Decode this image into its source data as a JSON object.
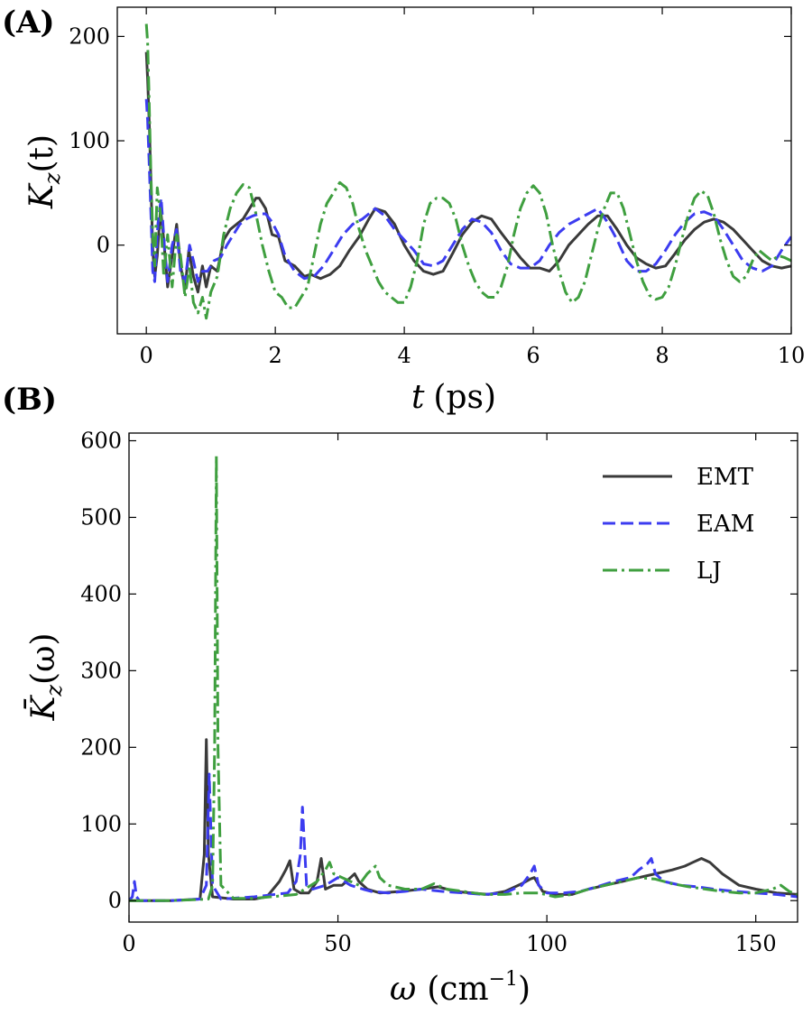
{
  "chart_data": [
    {
      "panel_label": "(A)",
      "type": "line",
      "title": "",
      "xlabel_main": "t",
      "xlabel_unit": "(ps)",
      "ylabel_main": "K",
      "ylabel_sub": "z",
      "ylabel_arg": "(t)",
      "xlim": [
        -0.45,
        10
      ],
      "ylim": [
        -85,
        228
      ],
      "xticks": [
        0,
        2,
        4,
        6,
        8,
        10
      ],
      "yticks": [
        0,
        100,
        200
      ],
      "grid": false,
      "series": [
        {
          "name": "EMT",
          "color": "#3a3a3a",
          "style": "solid",
          "x": [
            0,
            0.02,
            0.05,
            0.08,
            0.1,
            0.13,
            0.17,
            0.22,
            0.27,
            0.33,
            0.4,
            0.47,
            0.53,
            0.6,
            0.66,
            0.73,
            0.8,
            0.87,
            0.93,
            1.0,
            1.1,
            1.2,
            1.3,
            1.4,
            1.5,
            1.6,
            1.7,
            1.75,
            1.85,
            1.95,
            2.05,
            2.15,
            2.3,
            2.45,
            2.55,
            2.7,
            2.85,
            3.0,
            3.15,
            3.3,
            3.45,
            3.55,
            3.7,
            3.85,
            4.0,
            4.15,
            4.3,
            4.45,
            4.6,
            4.75,
            4.9,
            5.05,
            5.2,
            5.35,
            5.5,
            5.65,
            5.8,
            5.95,
            6.1,
            6.25,
            6.4,
            6.55,
            6.7,
            6.85,
            7.0,
            7.15,
            7.3,
            7.45,
            7.6,
            7.75,
            7.9,
            8.05,
            8.2,
            8.35,
            8.5,
            8.65,
            8.8,
            8.95,
            9.1,
            9.25,
            9.4,
            9.55,
            9.7,
            9.85,
            10.0
          ],
          "y": [
            185,
            160,
            110,
            40,
            -5,
            -30,
            -10,
            35,
            5,
            -40,
            -10,
            20,
            -20,
            -42,
            -5,
            -30,
            -45,
            -20,
            -40,
            -20,
            -25,
            5,
            15,
            20,
            25,
            35,
            45,
            45,
            35,
            10,
            8,
            -15,
            -20,
            -30,
            -28,
            -32,
            -28,
            -20,
            -5,
            8,
            25,
            35,
            32,
            20,
            0,
            -15,
            -25,
            -28,
            -25,
            -8,
            10,
            22,
            28,
            25,
            12,
            0,
            -12,
            -22,
            -22,
            -25,
            -15,
            0,
            10,
            20,
            28,
            28,
            15,
            0,
            -12,
            -18,
            -22,
            -20,
            -8,
            5,
            15,
            22,
            25,
            22,
            15,
            5,
            -5,
            -15,
            -20,
            -22,
            -20
          ]
        },
        {
          "name": "EAM",
          "color": "#3c3cf0",
          "style": "dashed",
          "x": [
            0,
            0.02,
            0.05,
            0.08,
            0.1,
            0.13,
            0.18,
            0.23,
            0.28,
            0.33,
            0.4,
            0.47,
            0.53,
            0.6,
            0.67,
            0.73,
            0.8,
            0.87,
            0.95,
            1.05,
            1.15,
            1.25,
            1.35,
            1.45,
            1.55,
            1.65,
            1.75,
            1.85,
            1.95,
            2.05,
            2.15,
            2.3,
            2.45,
            2.6,
            2.75,
            2.9,
            3.05,
            3.2,
            3.35,
            3.45,
            3.55,
            3.7,
            3.85,
            4.0,
            4.15,
            4.3,
            4.45,
            4.6,
            4.75,
            4.9,
            5.05,
            5.2,
            5.35,
            5.5,
            5.65,
            5.8,
            5.95,
            6.1,
            6.25,
            6.4,
            6.55,
            6.7,
            6.85,
            7.0,
            7.15,
            7.3,
            7.45,
            7.6,
            7.75,
            7.9,
            8.05,
            8.2,
            8.35,
            8.5,
            8.65,
            8.8,
            8.95,
            9.1,
            9.25,
            9.4,
            9.55,
            9.7,
            9.85,
            10.0
          ],
          "y": [
            140,
            120,
            70,
            15,
            -25,
            -35,
            20,
            45,
            0,
            -35,
            0,
            15,
            -25,
            -35,
            0,
            -15,
            -35,
            -25,
            -25,
            -15,
            -12,
            0,
            10,
            20,
            25,
            28,
            30,
            30,
            22,
            10,
            -10,
            -25,
            -32,
            -30,
            -20,
            -5,
            10,
            20,
            25,
            30,
            35,
            28,
            15,
            5,
            -5,
            -18,
            -20,
            -15,
            0,
            15,
            25,
            22,
            12,
            -5,
            -18,
            -22,
            -22,
            -15,
            0,
            12,
            20,
            25,
            30,
            35,
            22,
            5,
            -15,
            -25,
            -25,
            -18,
            -5,
            10,
            22,
            30,
            32,
            28,
            15,
            0,
            -15,
            -22,
            -25,
            -20,
            -5,
            8
          ]
        },
        {
          "name": "LJ",
          "color": "#3f9f3f",
          "style": "dashdot",
          "x": [
            0,
            0.02,
            0.04,
            0.07,
            0.1,
            0.13,
            0.17,
            0.22,
            0.27,
            0.33,
            0.4,
            0.47,
            0.53,
            0.6,
            0.67,
            0.73,
            0.8,
            0.87,
            0.93,
            1.0,
            1.1,
            1.2,
            1.3,
            1.4,
            1.5,
            1.6,
            1.7,
            1.8,
            1.9,
            2.0,
            2.1,
            2.2,
            2.3,
            2.4,
            2.5,
            2.6,
            2.7,
            2.8,
            2.9,
            3.0,
            3.1,
            3.2,
            3.3,
            3.4,
            3.5,
            3.6,
            3.7,
            3.8,
            3.9,
            4.0,
            4.1,
            4.2,
            4.3,
            4.4,
            4.5,
            4.6,
            4.7,
            4.8,
            4.9,
            5.0,
            5.1,
            5.2,
            5.3,
            5.4,
            5.5,
            5.6,
            5.7,
            5.8,
            5.9,
            6.0,
            6.1,
            6.2,
            6.3,
            6.4,
            6.5,
            6.6,
            6.7,
            6.8,
            6.9,
            7.0,
            7.1,
            7.2,
            7.3,
            7.4,
            7.5,
            7.6,
            7.7,
            7.8,
            7.9,
            8.0,
            8.1,
            8.2,
            8.3,
            8.4,
            8.5,
            8.6,
            8.7,
            8.8,
            8.9,
            9.0,
            9.1,
            9.2,
            9.3,
            9.4,
            9.5,
            9.6,
            9.7,
            9.8,
            9.9,
            10.0
          ],
          "y": [
            212,
            195,
            150,
            70,
            10,
            -20,
            55,
            30,
            -30,
            10,
            -40,
            10,
            -10,
            -50,
            -20,
            -55,
            -65,
            -50,
            -70,
            -45,
            -30,
            10,
            35,
            50,
            58,
            55,
            30,
            0,
            -25,
            -45,
            -50,
            -60,
            -60,
            -50,
            -40,
            -10,
            20,
            40,
            50,
            60,
            55,
            40,
            15,
            -5,
            -20,
            -35,
            -45,
            -50,
            -55,
            -55,
            -40,
            -15,
            20,
            40,
            45,
            45,
            40,
            25,
            0,
            -20,
            -35,
            -45,
            -50,
            -50,
            -40,
            -20,
            10,
            35,
            50,
            57,
            50,
            30,
            0,
            -25,
            -45,
            -55,
            -50,
            -35,
            -10,
            15,
            35,
            50,
            50,
            35,
            10,
            -15,
            -35,
            -48,
            -52,
            -50,
            -40,
            -20,
            5,
            28,
            45,
            52,
            48,
            30,
            5,
            -15,
            -30,
            -35,
            -30,
            -15,
            -5,
            -10,
            -15,
            -10,
            -12,
            -15
          ]
        }
      ]
    },
    {
      "panel_label": "(B)",
      "type": "line",
      "title": "",
      "xlabel_main": "ω",
      "xlabel_unit_open": "(cm",
      "xlabel_unit_sup": "−1",
      "xlabel_unit_close": ")",
      "ylabel_main": "K̄",
      "ylabel_sub": "z",
      "ylabel_arg": "(ω)",
      "xlim": [
        0,
        160
      ],
      "ylim": [
        -28,
        610
      ],
      "xticks": [
        0,
        50,
        100,
        150
      ],
      "yticks": [
        0,
        100,
        200,
        300,
        400,
        500,
        600
      ],
      "grid": false,
      "legend_position": "top-right",
      "series": [
        {
          "name": "EMT",
          "color": "#3a3a3a",
          "style": "solid",
          "x": [
            0,
            10,
            17,
            18,
            18.5,
            19,
            20,
            25,
            30,
            33,
            36,
            37.5,
            38.5,
            39.5,
            41,
            43,
            45,
            46,
            47,
            49,
            51,
            53,
            54,
            55,
            57,
            60,
            65,
            70,
            74,
            78,
            82,
            86,
            90,
            94,
            96,
            97,
            99,
            102,
            106,
            110,
            114,
            118,
            122,
            126,
            130,
            133,
            135,
            137,
            139,
            142,
            146,
            150,
            155,
            160
          ],
          "y": [
            0,
            0,
            2,
            60,
            210,
            60,
            5,
            2,
            2,
            5,
            25,
            40,
            52,
            15,
            10,
            10,
            25,
            55,
            15,
            20,
            20,
            30,
            35,
            25,
            15,
            10,
            12,
            15,
            18,
            12,
            10,
            8,
            12,
            22,
            28,
            30,
            12,
            8,
            8,
            15,
            20,
            25,
            30,
            35,
            40,
            45,
            50,
            55,
            50,
            35,
            20,
            15,
            10,
            8
          ]
        },
        {
          "name": "EAM",
          "color": "#3c3cf0",
          "style": "dashed",
          "x": [
            0,
            0.8,
            1.3,
            1.8,
            2.5,
            10,
            17,
            18.5,
            19.2,
            20,
            22,
            30,
            38,
            40,
            41,
            41.5,
            42.5,
            44,
            47,
            50,
            53,
            56,
            58,
            62,
            66,
            70,
            75,
            80,
            85,
            90,
            94,
            96,
            97,
            98,
            100,
            104,
            108,
            112,
            116,
            120,
            122,
            124,
            125,
            126,
            128,
            132,
            136,
            140,
            145,
            150,
            155,
            160
          ],
          "y": [
            0,
            5,
            25,
            5,
            0,
            0,
            2,
            20,
            165,
            20,
            2,
            5,
            10,
            25,
            60,
            122,
            20,
            15,
            20,
            30,
            20,
            15,
            12,
            10,
            12,
            15,
            12,
            10,
            8,
            10,
            20,
            35,
            45,
            20,
            10,
            10,
            12,
            18,
            25,
            30,
            40,
            48,
            55,
            35,
            25,
            20,
            18,
            15,
            12,
            10,
            8,
            5
          ]
        },
        {
          "name": "LJ",
          "color": "#3f9f3f",
          "style": "dashdot",
          "x": [
            0,
            10,
            19,
            20,
            20.5,
            20.9,
            21.3,
            22,
            25,
            30,
            40,
            45,
            47,
            48,
            49,
            51,
            53,
            55,
            57,
            59,
            60,
            62,
            66,
            70,
            73,
            76,
            80,
            85,
            90,
            94,
            98,
            102,
            106,
            110,
            114,
            118,
            122,
            126,
            130,
            134,
            138,
            142,
            146,
            150,
            154,
            156,
            158,
            160
          ],
          "y": [
            0,
            0,
            2,
            20,
            200,
            580,
            200,
            20,
            3,
            3,
            8,
            25,
            40,
            50,
            35,
            30,
            25,
            20,
            35,
            45,
            30,
            20,
            15,
            15,
            22,
            15,
            12,
            8,
            8,
            10,
            10,
            5,
            8,
            15,
            20,
            25,
            30,
            28,
            22,
            18,
            15,
            12,
            10,
            10,
            15,
            20,
            12,
            8
          ]
        }
      ]
    }
  ]
}
